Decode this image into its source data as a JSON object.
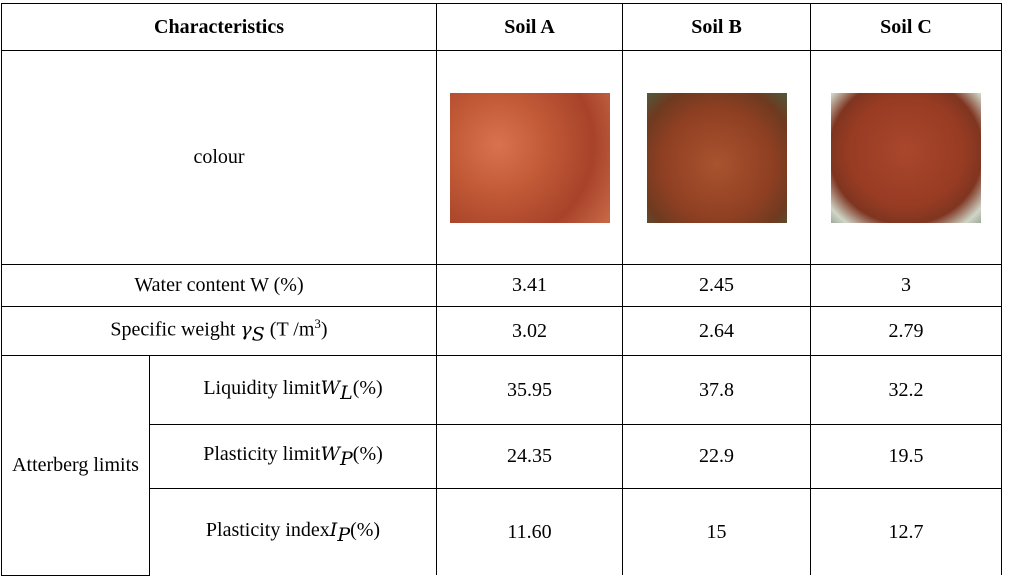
{
  "table": {
    "header": [
      "Characteristics",
      "Soil A",
      "Soil B",
      "Soil C"
    ],
    "colour_label": "colour",
    "rows": [
      {
        "label": [
          {
            "text": "Water content W (%)"
          }
        ],
        "values": [
          "3.41",
          "2.45",
          "3"
        ]
      },
      {
        "label": [
          {
            "text": "Specific weight "
          },
          {
            "text": "γ",
            "style": "italic"
          },
          {
            "text": "S",
            "style": "sub"
          },
          {
            "text": " (T /m"
          },
          {
            "text": "3",
            "style": "sup"
          },
          {
            "text": ")"
          }
        ],
        "values": [
          "3.02",
          "2.64",
          "2.79"
        ]
      }
    ],
    "group": {
      "label": "Atterberg limits",
      "rows": [
        {
          "label": [
            {
              "text": "Liquidity limit"
            },
            {
              "text": "W",
              "style": "italic"
            },
            {
              "text": "L",
              "style": "sub"
            },
            {
              "text": "(%)"
            }
          ],
          "values": [
            "35.95",
            "37.8",
            "32.2"
          ]
        },
        {
          "label": [
            {
              "text": "Plasticity limit"
            },
            {
              "text": "W",
              "style": "italic"
            },
            {
              "text": "P",
              "style": "sub"
            },
            {
              "text": "(%)"
            }
          ],
          "values": [
            "24.35",
            "22.9",
            "19.5"
          ]
        },
        {
          "label": [
            {
              "text": "Plasticity index"
            },
            {
              "text": "I",
              "style": "italic"
            },
            {
              "text": "P",
              "style": "sub"
            },
            {
              "text": "(%)"
            }
          ],
          "values": [
            "11.60",
            "15",
            "12.7"
          ]
        }
      ]
    }
  }
}
